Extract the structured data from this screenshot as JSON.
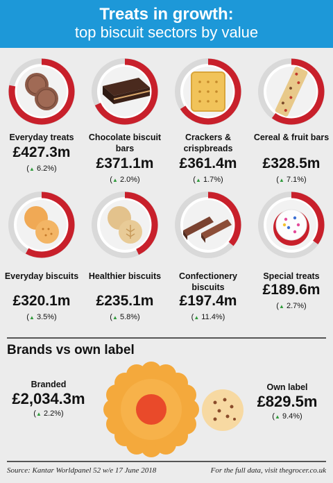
{
  "header": {
    "title": "Treats in growth:",
    "subtitle": "top biscuit sectors by value"
  },
  "chart_data": {
    "type": "table",
    "sectors": [
      {
        "name": "Everyday treats",
        "value": "£427.3m",
        "change": "6.2%",
        "share": 0.78
      },
      {
        "name": "Chocolate biscuit bars",
        "value": "£371.1m",
        "change": "2.0%",
        "share": 0.68
      },
      {
        "name": "Crackers & crispbreads",
        "value": "£361.4m",
        "change": "1.7%",
        "share": 0.66
      },
      {
        "name": "Cereal & fruit bars",
        "value": "£328.5m",
        "change": "7.1%",
        "share": 0.6
      },
      {
        "name": "Everyday biscuits",
        "value": "£320.1m",
        "change": "3.5%",
        "share": 0.58
      },
      {
        "name": "Healthier biscuits",
        "value": "£235.1m",
        "change": "5.8%",
        "share": 0.43
      },
      {
        "name": "Confectionery biscuits",
        "value": "£197.4m",
        "change": "11.4%",
        "share": 0.36
      },
      {
        "name": "Special treats",
        "value": "£189.6m",
        "change": "2.7%",
        "share": 0.35
      }
    ],
    "comparison": {
      "title": "Brands vs own label",
      "items": [
        {
          "name": "Branded",
          "value": "£2,034.3m",
          "change": "2.2%"
        },
        {
          "name": "Own label",
          "value": "£829.5m",
          "change": "9.4%"
        }
      ]
    }
  },
  "footer": {
    "source": "Source: Kantar Worldpanel 52 w/e 17 June 2018",
    "link": "For the full data, visit thegrocer.co.uk"
  },
  "colors": {
    "header": "#1d98d8",
    "ring": "#c8202b",
    "up_arrow": "#2e9a3a"
  }
}
